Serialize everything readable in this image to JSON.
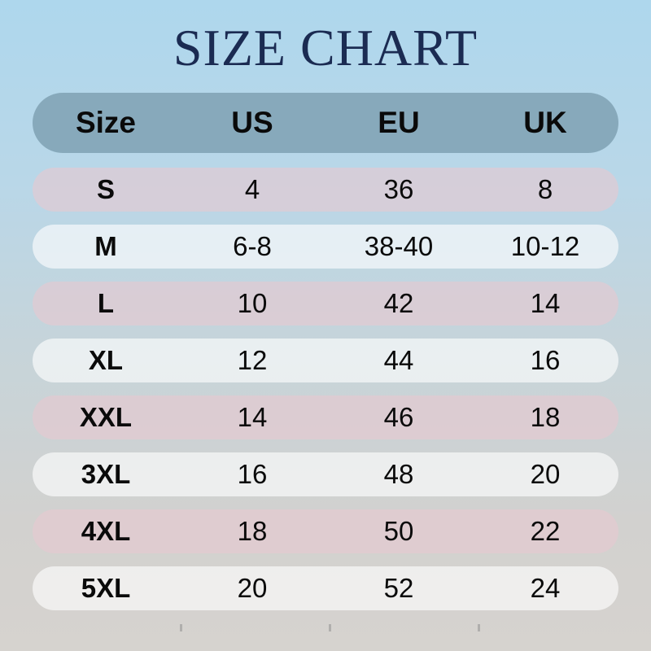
{
  "colors": {
    "background_top": "#aed7ed",
    "background_bottom": "#d6d3cf",
    "title_text": "#1b2b52",
    "header_row_bg": "#87a9bb",
    "row_pink_overlay": "rgba(230,200,209,0.62)",
    "row_light_overlay": "rgba(255,255,255,0.62)",
    "cell_text": "#0a0a0a"
  },
  "chart_data": {
    "type": "table",
    "title": "SIZE CHART",
    "columns": [
      "Size",
      "US",
      "EU",
      "UK"
    ],
    "rows": [
      {
        "size": "S",
        "us": "4",
        "eu": "36",
        "uk": "8"
      },
      {
        "size": "M",
        "us": "6-8",
        "eu": "38-40",
        "uk": "10-12"
      },
      {
        "size": "L",
        "us": "10",
        "eu": "42",
        "uk": "14"
      },
      {
        "size": "XL",
        "us": "12",
        "eu": "44",
        "uk": "16"
      },
      {
        "size": "XXL",
        "us": "14",
        "eu": "46",
        "uk": "18"
      },
      {
        "size": "3XL",
        "us": "16",
        "eu": "48",
        "uk": "20"
      },
      {
        "size": "4XL",
        "us": "18",
        "eu": "50",
        "uk": "22"
      },
      {
        "size": "5XL",
        "us": "20",
        "eu": "52",
        "uk": "24"
      }
    ]
  }
}
